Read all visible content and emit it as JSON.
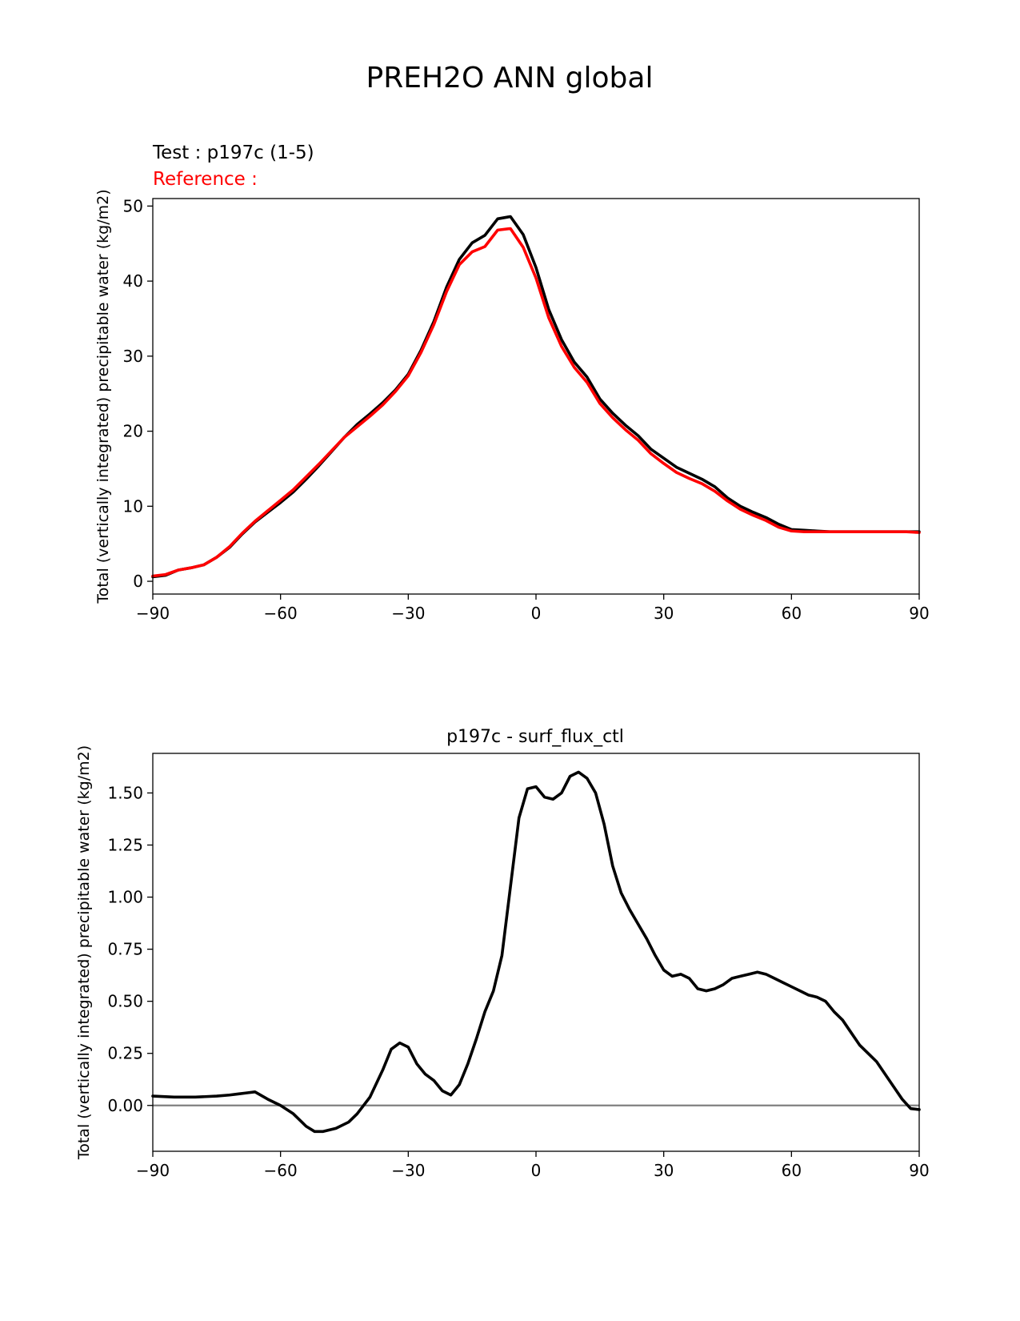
{
  "figure_title": "PREH2O ANN global",
  "colors": {
    "test": "#000000",
    "reference": "#ff0000",
    "zero_line": "#808080"
  },
  "chart_data": [
    {
      "type": "line",
      "panel": "top",
      "title": "",
      "test_label": "Test : p197c (1-5)",
      "reference_label": "Reference :",
      "xlabel": "",
      "ylabel": "Total (vertically integrated) precipitable water (kg/m2)",
      "xlim": [
        -90,
        90
      ],
      "ylim": [
        -1.7,
        51
      ],
      "xticks": [
        -90,
        -60,
        -30,
        0,
        30,
        60,
        90
      ],
      "xtick_labels": [
        "−90",
        "−60",
        "−30",
        "0",
        "30",
        "60",
        "90"
      ],
      "yticks": [
        0,
        10,
        20,
        30,
        40,
        50
      ],
      "ytick_labels": [
        "0",
        "10",
        "20",
        "30",
        "40",
        "50"
      ],
      "x": [
        -90,
        -87,
        -84,
        -81,
        -78,
        -75,
        -72,
        -69,
        -66,
        -63,
        -60,
        -57,
        -54,
        -51,
        -48,
        -45,
        -42,
        -39,
        -36,
        -33,
        -30,
        -27,
        -24,
        -21,
        -18,
        -15,
        -12,
        -9,
        -6,
        -3,
        0,
        3,
        6,
        9,
        12,
        15,
        18,
        21,
        24,
        27,
        30,
        33,
        36,
        39,
        42,
        45,
        48,
        51,
        54,
        57,
        60,
        63,
        66,
        69,
        72,
        75,
        78,
        81,
        84,
        87,
        90
      ],
      "series": [
        {
          "name": "test",
          "color": "#000000",
          "values": [
            0.6,
            0.8,
            1.5,
            1.8,
            2.2,
            3.2,
            4.5,
            6.3,
            7.9,
            9.2,
            10.5,
            11.9,
            13.6,
            15.4,
            17.3,
            19.2,
            20.9,
            22.3,
            23.8,
            25.5,
            27.6,
            30.8,
            34.6,
            39.2,
            42.9,
            45.1,
            46.1,
            48.3,
            48.6,
            46.2,
            41.8,
            36.2,
            32.2,
            29.2,
            27.2,
            24.3,
            22.4,
            20.8,
            19.4,
            17.6,
            16.4,
            15.2,
            14.4,
            13.6,
            12.6,
            11.1,
            10.0,
            9.2,
            8.5,
            7.6,
            6.9,
            6.8,
            6.7,
            6.6,
            6.6,
            6.6,
            6.6,
            6.6,
            6.6,
            6.6,
            6.6
          ]
        },
        {
          "name": "reference",
          "color": "#ff0000",
          "values": [
            0.7,
            0.9,
            1.5,
            1.8,
            2.2,
            3.2,
            4.6,
            6.4,
            8.0,
            9.4,
            10.8,
            12.2,
            13.9,
            15.6,
            17.4,
            19.2,
            20.6,
            22.0,
            23.5,
            25.3,
            27.4,
            30.5,
            34.2,
            38.6,
            42.2,
            43.9,
            44.6,
            46.8,
            47.0,
            44.5,
            40.4,
            35.1,
            31.3,
            28.5,
            26.5,
            23.7,
            21.8,
            20.2,
            18.8,
            17.0,
            15.7,
            14.5,
            13.7,
            13.0,
            12.0,
            10.7,
            9.6,
            8.8,
            8.1,
            7.2,
            6.7,
            6.6,
            6.6,
            6.6,
            6.6,
            6.6,
            6.6,
            6.6,
            6.6,
            6.6,
            6.5
          ]
        }
      ]
    },
    {
      "type": "line",
      "panel": "bottom",
      "title": "p197c - surf_flux_ctl",
      "xlabel": "",
      "ylabel": "Total (vertically integrated) precipitable water (kg/m2)",
      "xlim": [
        -90,
        90
      ],
      "ylim": [
        -0.22,
        1.69
      ],
      "xticks": [
        -90,
        -60,
        -30,
        0,
        30,
        60,
        90
      ],
      "xtick_labels": [
        "−90",
        "−60",
        "−30",
        "0",
        "30",
        "60",
        "90"
      ],
      "yticks": [
        0.0,
        0.25,
        0.5,
        0.75,
        1.0,
        1.25,
        1.5
      ],
      "ytick_labels": [
        "0.00",
        "0.25",
        "0.50",
        "0.75",
        "1.00",
        "1.25",
        "1.50"
      ],
      "zero_line": 0,
      "x": [
        -90,
        -85,
        -80,
        -75,
        -72,
        -70,
        -68,
        -66,
        -63,
        -60,
        -57,
        -54,
        -52,
        -50,
        -47,
        -44,
        -42,
        -39,
        -36,
        -34,
        -32,
        -30,
        -28,
        -26,
        -24,
        -22,
        -20,
        -18,
        -16,
        -14,
        -12,
        -10,
        -8,
        -6,
        -4,
        -2,
        0,
        2,
        4,
        6,
        8,
        10,
        12,
        14,
        16,
        18,
        20,
        22,
        24,
        26,
        28,
        30,
        32,
        34,
        36,
        38,
        40,
        42,
        44,
        46,
        48,
        50,
        52,
        54,
        56,
        58,
        60,
        62,
        64,
        66,
        68,
        70,
        72,
        74,
        76,
        78,
        80,
        82,
        84,
        86,
        88,
        90
      ],
      "series": [
        {
          "name": "difference",
          "color": "#000000",
          "values": [
            0.045,
            0.04,
            0.04,
            0.045,
            0.05,
            0.055,
            0.06,
            0.065,
            0.03,
            0.0,
            -0.04,
            -0.1,
            -0.125,
            -0.125,
            -0.11,
            -0.08,
            -0.04,
            0.04,
            0.17,
            0.27,
            0.3,
            0.28,
            0.2,
            0.15,
            0.12,
            0.07,
            0.05,
            0.1,
            0.2,
            0.32,
            0.45,
            0.55,
            0.72,
            1.05,
            1.38,
            1.52,
            1.53,
            1.48,
            1.47,
            1.5,
            1.58,
            1.6,
            1.57,
            1.5,
            1.35,
            1.15,
            1.02,
            0.94,
            0.87,
            0.8,
            0.72,
            0.65,
            0.62,
            0.63,
            0.61,
            0.56,
            0.55,
            0.56,
            0.58,
            0.61,
            0.62,
            0.63,
            0.64,
            0.63,
            0.61,
            0.59,
            0.57,
            0.55,
            0.53,
            0.52,
            0.5,
            0.45,
            0.41,
            0.35,
            0.29,
            0.25,
            0.21,
            0.15,
            0.09,
            0.03,
            -0.015,
            -0.02
          ]
        }
      ]
    }
  ]
}
